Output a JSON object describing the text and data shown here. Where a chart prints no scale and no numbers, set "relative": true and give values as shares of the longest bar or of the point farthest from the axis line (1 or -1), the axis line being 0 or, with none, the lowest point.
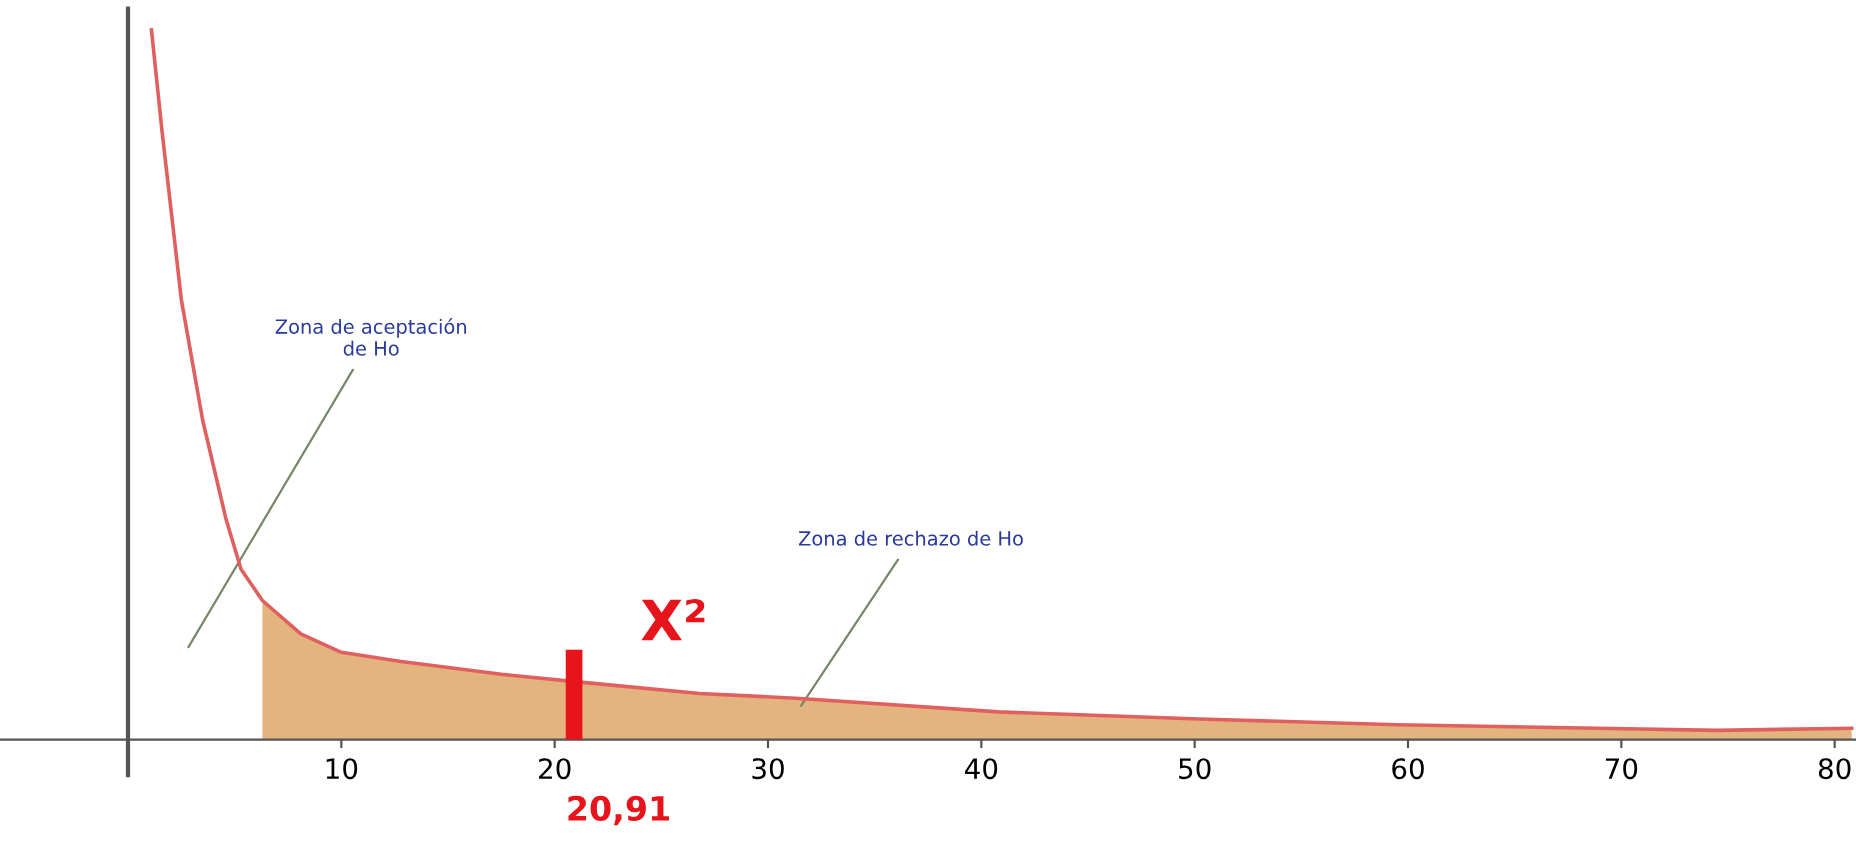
{
  "chart_data": {
    "type": "line",
    "relative": true,
    "xlim": [
      -6,
      81
    ],
    "xticks": [
      10,
      20,
      30,
      40,
      50,
      60,
      70,
      80
    ],
    "series": [
      {
        "type": "area",
        "color": "#e3b47f",
        "x": [
          6.3,
          8.1,
          10,
          12.8,
          17.5,
          21.2,
          26.8,
          31.5,
          40.8,
          50.2,
          59.5,
          68.9,
          74.5,
          80.8
        ],
        "values": [
          0.196,
          0.149,
          0.123,
          0.11,
          0.092,
          0.081,
          0.065,
          0.058,
          0.039,
          0.029,
          0.021,
          0.016,
          0.013,
          0.016
        ]
      },
      {
        "color": "#e06060",
        "x": [
          1.1,
          1.6,
          2.5,
          3.5,
          4.6,
          5.3,
          6.3,
          8.1,
          10,
          12.8,
          17.5,
          21.2,
          26.8,
          31.5,
          40.8,
          50.2,
          59.5,
          68.9,
          74.5,
          80.8
        ],
        "values": [
          1.0,
          0.856,
          0.62,
          0.45,
          0.31,
          0.24,
          0.196,
          0.149,
          0.123,
          0.11,
          0.092,
          0.081,
          0.065,
          0.058,
          0.039,
          0.029,
          0.021,
          0.016,
          0.013,
          0.016
        ]
      },
      {
        "type": "line",
        "color": "#e8141c",
        "x": [
          20.91,
          20.91
        ],
        "values": [
          0,
          0.115
        ]
      }
    ],
    "annotations": [
      "Zona de aceptación\nde Ho",
      "Zona de rechazo de Ho",
      "X²",
      {
        "text": "20,91",
        "x": 20.91,
        "y": 0
      }
    ]
  }
}
